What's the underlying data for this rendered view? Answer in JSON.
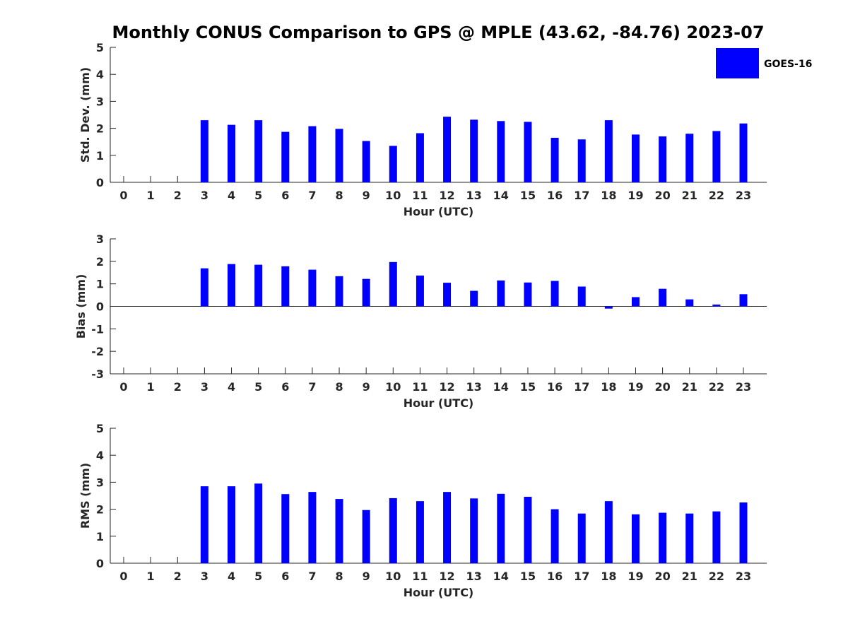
{
  "figure": {
    "title": "Monthly CONUS Comparison to GPS @ MPLE (43.62, -84.76) 2023-07"
  },
  "legend": {
    "label": "GOES-16",
    "color": "#0000ff",
    "placement": "top-right"
  },
  "chart_data": [
    {
      "type": "bar",
      "ylabel": "Std. Dev. (mm)",
      "xlabel": "Hour (UTC)",
      "ylim": [
        0,
        5
      ],
      "yticks": [
        0,
        1,
        2,
        3,
        4,
        5
      ],
      "categories": [
        "0",
        "1",
        "2",
        "3",
        "4",
        "5",
        "6",
        "7",
        "8",
        "9",
        "10",
        "11",
        "12",
        "13",
        "14",
        "15",
        "16",
        "17",
        "18",
        "19",
        "20",
        "21",
        "22",
        "23"
      ],
      "series": [
        {
          "name": "GOES-16",
          "color": "#0000ff",
          "values": [
            null,
            null,
            null,
            2.3,
            2.13,
            2.3,
            1.87,
            2.08,
            1.98,
            1.53,
            1.35,
            1.82,
            2.43,
            2.32,
            2.27,
            2.24,
            1.65,
            1.59,
            2.3,
            1.77,
            1.7,
            1.8,
            1.9,
            2.18
          ]
        }
      ]
    },
    {
      "type": "bar",
      "ylabel": "Bias (mm)",
      "xlabel": "Hour (UTC)",
      "ylim": [
        -3,
        3
      ],
      "yticks": [
        -3,
        -2,
        -1,
        0,
        1,
        2,
        3
      ],
      "categories": [
        "0",
        "1",
        "2",
        "3",
        "4",
        "5",
        "6",
        "7",
        "8",
        "9",
        "10",
        "11",
        "12",
        "13",
        "14",
        "15",
        "16",
        "17",
        "18",
        "19",
        "20",
        "21",
        "22",
        "23"
      ],
      "series": [
        {
          "name": "GOES-16",
          "color": "#0000ff",
          "values": [
            null,
            null,
            null,
            1.69,
            1.88,
            1.85,
            1.78,
            1.63,
            1.34,
            1.22,
            1.97,
            1.37,
            1.05,
            0.69,
            1.15,
            1.06,
            1.13,
            0.88,
            -0.1,
            0.41,
            0.78,
            0.31,
            0.08,
            0.54
          ]
        }
      ]
    },
    {
      "type": "bar",
      "ylabel": "RMS (mm)",
      "xlabel": "Hour (UTC)",
      "ylim": [
        0,
        5
      ],
      "yticks": [
        0,
        1,
        2,
        3,
        4,
        5
      ],
      "categories": [
        "0",
        "1",
        "2",
        "3",
        "4",
        "5",
        "6",
        "7",
        "8",
        "9",
        "10",
        "11",
        "12",
        "13",
        "14",
        "15",
        "16",
        "17",
        "18",
        "19",
        "20",
        "21",
        "22",
        "23"
      ],
      "series": [
        {
          "name": "GOES-16",
          "color": "#0000ff",
          "values": [
            null,
            null,
            null,
            2.85,
            2.85,
            2.95,
            2.56,
            2.64,
            2.38,
            1.97,
            2.41,
            2.3,
            2.64,
            2.4,
            2.57,
            2.46,
            2.0,
            1.84,
            2.3,
            1.81,
            1.87,
            1.84,
            1.92,
            2.25
          ]
        }
      ]
    }
  ]
}
